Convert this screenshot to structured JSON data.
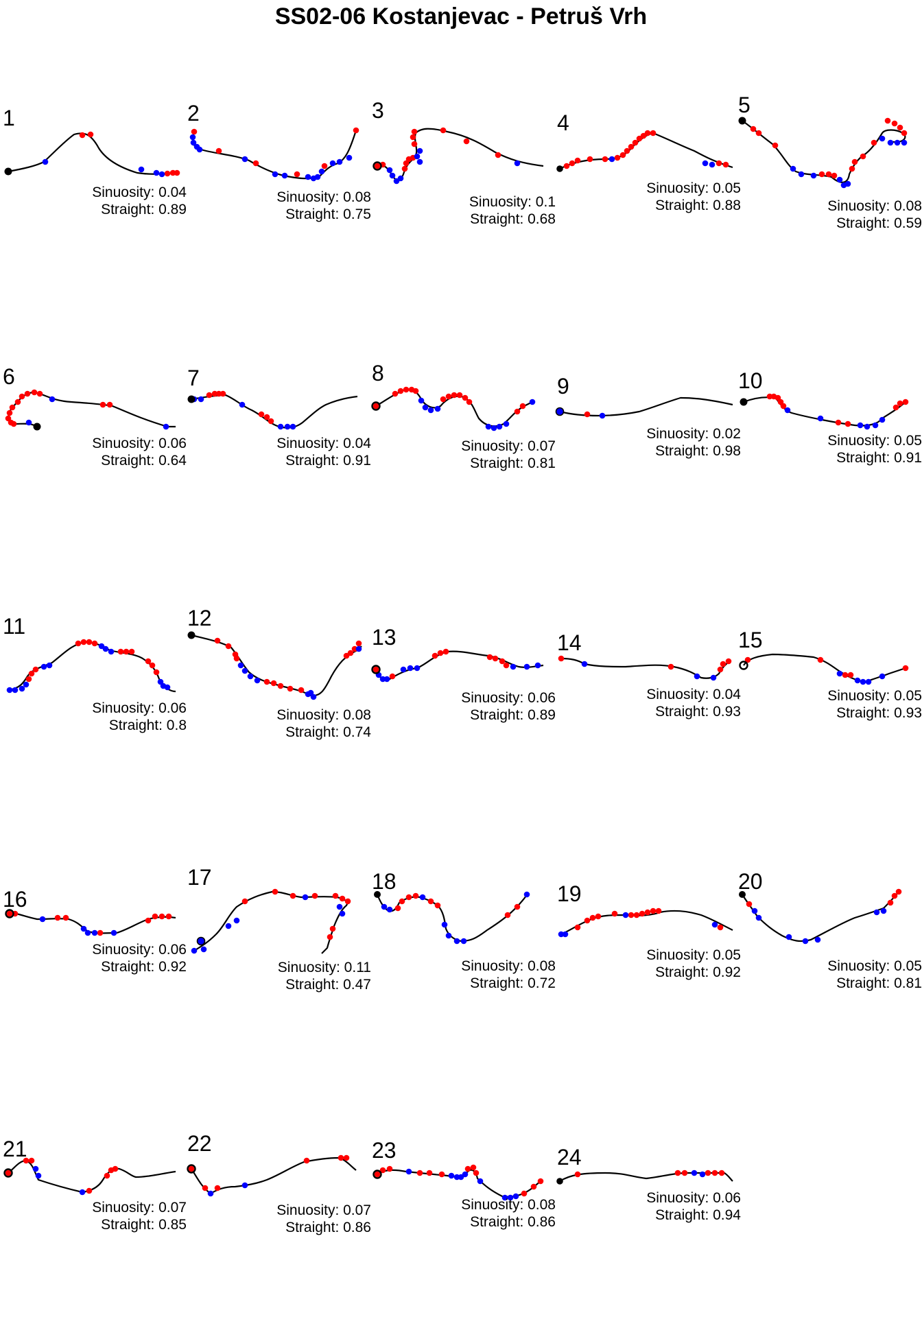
{
  "title": "SS02-06 Kostanjevac - Petruš Vrh",
  "colors": {
    "left_turn": "#ff0000",
    "right_turn": "#0000ff",
    "start": "#000000",
    "line": "#000000"
  },
  "chart_data": {
    "type": "scatter",
    "title": "SS02-06 Kostanjevac - Petruš Vrh",
    "legend": "none",
    "grid": false,
    "panels": [
      {
        "id": "1",
        "sinuosity": "Sinuosity: 0.04",
        "straight": "Straight: 0.89"
      },
      {
        "id": "2",
        "sinuosity": "Sinuosity: 0.08",
        "straight": "Straight: 0.75"
      },
      {
        "id": "3",
        "sinuosity": "Sinuosity: 0.1",
        "straight": "Straight: 0.68"
      },
      {
        "id": "4",
        "sinuosity": "Sinuosity: 0.05",
        "straight": "Straight: 0.88"
      },
      {
        "id": "5",
        "sinuosity": "Sinuosity: 0.08",
        "straight": "Straight: 0.59"
      },
      {
        "id": "6",
        "sinuosity": "Sinuosity: 0.06",
        "straight": "Straight: 0.64"
      },
      {
        "id": "7",
        "sinuosity": "Sinuosity: 0.04",
        "straight": "Straight: 0.91"
      },
      {
        "id": "8",
        "sinuosity": "Sinuosity: 0.07",
        "straight": "Straight: 0.81"
      },
      {
        "id": "9",
        "sinuosity": "Sinuosity: 0.02",
        "straight": "Straight: 0.98"
      },
      {
        "id": "10",
        "sinuosity": "Sinuosity: 0.05",
        "straight": "Straight: 0.91"
      },
      {
        "id": "11",
        "sinuosity": "Sinuosity: 0.06",
        "straight": "Straight: 0.8"
      },
      {
        "id": "12",
        "sinuosity": "Sinuosity: 0.08",
        "straight": "Straight: 0.74"
      },
      {
        "id": "13",
        "sinuosity": "Sinuosity: 0.06",
        "straight": "Straight: 0.89"
      },
      {
        "id": "14",
        "sinuosity": "Sinuosity: 0.04",
        "straight": "Straight: 0.93"
      },
      {
        "id": "15",
        "sinuosity": "Sinuosity: 0.05",
        "straight": "Straight: 0.93"
      },
      {
        "id": "16",
        "sinuosity": "Sinuosity: 0.06",
        "straight": "Straight: 0.92"
      },
      {
        "id": "17",
        "sinuosity": "Sinuosity: 0.11",
        "straight": "Straight: 0.47"
      },
      {
        "id": "18",
        "sinuosity": "Sinuosity: 0.08",
        "straight": "Straight: 0.72"
      },
      {
        "id": "19",
        "sinuosity": "Sinuosity: 0.05",
        "straight": "Straight: 0.92"
      },
      {
        "id": "20",
        "sinuosity": "Sinuosity: 0.05",
        "straight": "Straight: 0.81"
      },
      {
        "id": "21",
        "sinuosity": "Sinuosity: 0.07",
        "straight": "Straight: 0.85"
      },
      {
        "id": "22",
        "sinuosity": "Sinuosity: 0.07",
        "straight": "Straight: 0.86"
      },
      {
        "id": "23",
        "sinuosity": "Sinuosity: 0.08",
        "straight": "Straight: 0.86"
      },
      {
        "id": "24",
        "sinuosity": "Sinuosity: 0.06",
        "straight": "Straight: 0.94"
      }
    ]
  }
}
